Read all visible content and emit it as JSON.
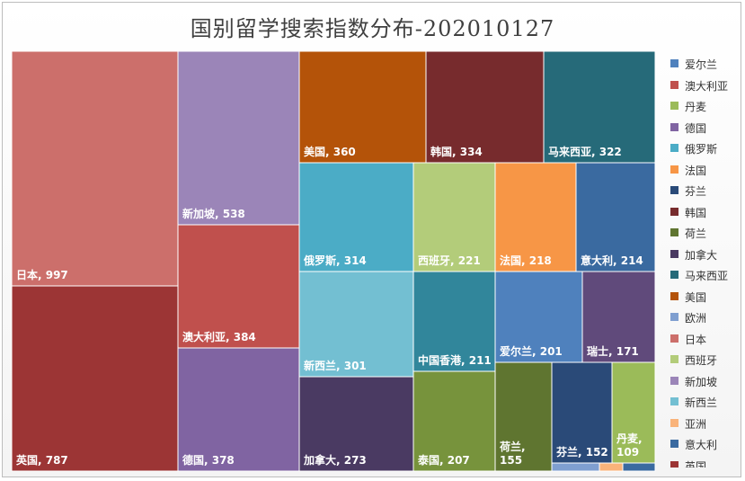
{
  "title": "国别留学搜索指数分布-202010127",
  "chart_data": {
    "type": "treemap",
    "title": "国别留学搜索指数分布-202010127",
    "items": [
      {
        "name": "日本",
        "value": 997,
        "color": "#cc6f6b",
        "label": "日本, 997"
      },
      {
        "name": "英国",
        "value": 787,
        "color": "#9c3535",
        "label": "英国, 787"
      },
      {
        "name": "新加坡",
        "value": 538,
        "color": "#9b85b8",
        "label": "新加坡, 538"
      },
      {
        "name": "澳大利亚",
        "value": 384,
        "color": "#c0504d",
        "label": "澳大利亚, 384"
      },
      {
        "name": "德国",
        "value": 378,
        "color": "#8064a2",
        "label": "德国, 378"
      },
      {
        "name": "美国",
        "value": 360,
        "color": "#b45309",
        "label": "美国, 360"
      },
      {
        "name": "韩国",
        "value": 334,
        "color": "#772b2d",
        "label": "韩国, 334"
      },
      {
        "name": "马来西亚",
        "value": 322,
        "color": "#266a79",
        "label": "马来西亚, 322"
      },
      {
        "name": "俄罗斯",
        "value": 314,
        "color": "#4bacc6",
        "label": "俄罗斯, 314"
      },
      {
        "name": "西班牙",
        "value": 221,
        "color": "#b3cc7a",
        "label": "西班牙, 221"
      },
      {
        "name": "法国",
        "value": 218,
        "color": "#f79646",
        "label": "法国, 218"
      },
      {
        "name": "意大利",
        "value": 214,
        "color": "#3a6aa0",
        "label": "意大利, 214"
      },
      {
        "name": "新西兰",
        "value": 301,
        "color": "#73bfd2",
        "label": "新西兰, 301"
      },
      {
        "name": "中国香港",
        "value": 211,
        "color": "#31869b",
        "label": "中国香港, 211"
      },
      {
        "name": "爱尔兰",
        "value": 201,
        "color": "#4f81bd",
        "label": "爱尔兰, 201"
      },
      {
        "name": "瑞士",
        "value": 171,
        "color": "#604a7b",
        "label": "瑞士, 171"
      },
      {
        "name": "加拿大",
        "value": 273,
        "color": "#4a3a62",
        "label": "加拿大, 273"
      },
      {
        "name": "泰国",
        "value": 207,
        "color": "#77933c",
        "label": "泰国, 207"
      },
      {
        "name": "荷兰",
        "value": 155,
        "color": "#5f7530",
        "label": "荷兰,\n155"
      },
      {
        "name": "芬兰",
        "value": 152,
        "color": "#2a4a78",
        "label": "芬兰, 152"
      },
      {
        "name": "丹麦",
        "value": 109,
        "color": "#9bbb59",
        "label": "丹麦,\n109"
      },
      {
        "name": "欧洲",
        "value": 0,
        "color": "#7f9fd0",
        "label": ""
      },
      {
        "name": "亚洲",
        "value": 0,
        "color": "#f9b37a",
        "label": ""
      },
      {
        "name": "意大利",
        "value": 0,
        "color": "#3a6aa0",
        "label": ""
      }
    ],
    "legend": {
      "position": "right",
      "items": [
        {
          "label": "爱尔兰",
          "color": "#4f81bd"
        },
        {
          "label": "澳大利亚",
          "color": "#c0504d"
        },
        {
          "label": "丹麦",
          "color": "#9bbb59"
        },
        {
          "label": "德国",
          "color": "#8064a2"
        },
        {
          "label": "俄罗斯",
          "color": "#4bacc6"
        },
        {
          "label": "法国",
          "color": "#f79646"
        },
        {
          "label": "芬兰",
          "color": "#2a4a78"
        },
        {
          "label": "韩国",
          "color": "#772b2d"
        },
        {
          "label": "荷兰",
          "color": "#5f7530"
        },
        {
          "label": "加拿大",
          "color": "#4a3a62"
        },
        {
          "label": "马来西亚",
          "color": "#266a79"
        },
        {
          "label": "美国",
          "color": "#b45309"
        },
        {
          "label": "欧洲",
          "color": "#7f9fd0"
        },
        {
          "label": "日本",
          "color": "#cc6f6b"
        },
        {
          "label": "西班牙",
          "color": "#b3cc7a"
        },
        {
          "label": "新加坡",
          "color": "#9b85b8"
        },
        {
          "label": "新西兰",
          "color": "#73bfd2"
        },
        {
          "label": "亚洲",
          "color": "#f9b37a"
        },
        {
          "label": "意大利",
          "color": "#3a6aa0"
        },
        {
          "label": "英国",
          "color": "#9c3535"
        }
      ]
    }
  }
}
